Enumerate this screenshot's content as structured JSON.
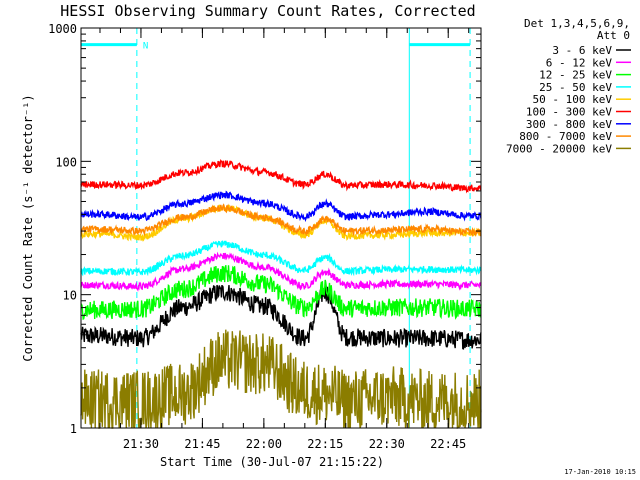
{
  "chart_data": {
    "type": "line",
    "title": "HESSI Observing Summary Count Rates, Corrected",
    "xlabel": "Start Time (30-Jul-07 21:15:22)",
    "ylabel": "Corrected Count Rate (s⁻¹ detector⁻¹)",
    "yscale": "log",
    "ylim": [
      1,
      1000
    ],
    "xlim": [
      "21:15:22",
      "22:53:00"
    ],
    "x_ticks": [
      "21:30",
      "21:45",
      "22:00",
      "22:15",
      "22:30",
      "22:45"
    ],
    "y_ticks": [
      "1",
      "10",
      "100",
      "1000"
    ],
    "legend_header": [
      "Det 1,3,4,5,6,9,",
      "Att 0"
    ],
    "legend_position": "right",
    "grid": false,
    "annotations": {
      "marker_N": "N",
      "shaded_bar_color": "#00ffff",
      "marker_times": [
        "21:15:22",
        "21:29:00",
        "22:35:30",
        "22:50:20"
      ],
      "night_intervals": [
        [
          "21:15:22",
          "21:29:00"
        ],
        [
          "22:35:30",
          "22:50:20"
        ]
      ],
      "night_bar_level": 750
    },
    "x": [
      "21:20",
      "21:30",
      "21:40",
      "21:50",
      "22:00",
      "22:10",
      "22:15",
      "22:20",
      "22:30",
      "22:40",
      "22:50"
    ],
    "series": [
      {
        "name": "3 - 6 keV",
        "color": "#000000",
        "values": [
          4.9,
          4.7,
          8.0,
          10.5,
          8.2,
          4.7,
          10.5,
          4.8,
          4.7,
          4.7,
          4.6
        ]
      },
      {
        "name": "6 - 12 keV",
        "color": "#ff00ff",
        "values": [
          11.8,
          11.5,
          15.5,
          19.5,
          16.0,
          11.6,
          14.8,
          11.8,
          12.0,
          12.0,
          11.8
        ]
      },
      {
        "name": "12 - 25 keV",
        "color": "#00ff00",
        "values": [
          7.7,
          7.8,
          11.0,
          14.5,
          12.0,
          8.0,
          11.0,
          7.9,
          8.0,
          8.0,
          7.8
        ]
      },
      {
        "name": "25 - 50 keV",
        "color": "#00ffff",
        "values": [
          15.0,
          14.8,
          19.5,
          24.0,
          19.8,
          15.2,
          19.0,
          15.0,
          15.4,
          15.5,
          15.3
        ]
      },
      {
        "name": "50 - 100 keV",
        "color": "#ffcc00",
        "values": [
          28.5,
          27.0,
          37.0,
          45.0,
          37.5,
          28.0,
          36.0,
          27.5,
          28.0,
          29.0,
          29.0
        ]
      },
      {
        "name": "100 - 300 keV",
        "color": "#ff0000",
        "values": [
          67.0,
          66.0,
          82.0,
          96.0,
          83.0,
          67.0,
          80.0,
          66.0,
          67.0,
          66.0,
          63.0
        ]
      },
      {
        "name": "300 - 800 keV",
        "color": "#0000ff",
        "values": [
          40.0,
          38.0,
          48.0,
          56.0,
          48.5,
          38.5,
          48.0,
          38.5,
          40.0,
          42.0,
          39.0
        ]
      },
      {
        "name": "800 - 7000 keV",
        "color": "#ff8800",
        "values": [
          31.0,
          30.0,
          38.0,
          44.5,
          38.0,
          30.0,
          37.0,
          30.0,
          30.5,
          31.0,
          29.5
        ]
      },
      {
        "name": "7000 - 20000 keV",
        "color": "#8b7d00",
        "values": [
          1.6,
          1.6,
          1.8,
          3.2,
          3.0,
          1.9,
          1.8,
          1.6,
          1.7,
          1.6,
          1.6
        ]
      }
    ]
  },
  "footer": {
    "date_stamp": "17-Jan-2010 10:15"
  }
}
